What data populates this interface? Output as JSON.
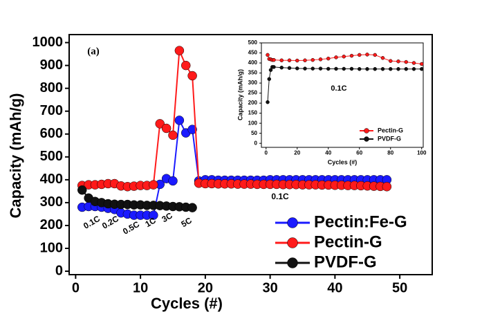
{
  "chart_data": [
    {
      "type": "line",
      "x_label": "Cycles (#)",
      "y_label": "Capacity (mAh/g)",
      "xlim": [
        -1,
        55
      ],
      "ylim": [
        -15,
        1035
      ],
      "xticks": [
        0,
        10,
        20,
        30,
        40,
        50
      ],
      "yticks": [
        0,
        100,
        200,
        300,
        400,
        500,
        600,
        700,
        800,
        900,
        1000
      ],
      "legend": "lower right",
      "annotations": [
        "(a)",
        "0.1C",
        "0.2C",
        "0.5C",
        "1C",
        "3C",
        "5C",
        "0.1C"
      ],
      "x": [
        1,
        2,
        3,
        4,
        5,
        6,
        7,
        8,
        9,
        10,
        11,
        12,
        13,
        14,
        15,
        16,
        17,
        18,
        19,
        20,
        21,
        22,
        23,
        24,
        25,
        26,
        27,
        28,
        29,
        30,
        31,
        32,
        33,
        34,
        35,
        36,
        37,
        38,
        39,
        40,
        41,
        42,
        43,
        44,
        45,
        46,
        47,
        48
      ],
      "series": [
        {
          "name": "Pectin:Fe-G",
          "color": "#1a1aff",
          "values": [
            280,
            283,
            283,
            280,
            275,
            270,
            255,
            250,
            245,
            245,
            245,
            245,
            380,
            405,
            395,
            660,
            605,
            620,
            395,
            400,
            400,
            398,
            398,
            398,
            398,
            398,
            398,
            398,
            398,
            400,
            400,
            400,
            400,
            400,
            400,
            400,
            400,
            400,
            400,
            400,
            400,
            400,
            400,
            400,
            400,
            400,
            400,
            400
          ]
        },
        {
          "name": "Pectin-G",
          "color": "#ff1a1a",
          "values": [
            375,
            378,
            378,
            380,
            383,
            383,
            373,
            370,
            372,
            375,
            375,
            378,
            645,
            625,
            595,
            965,
            900,
            855,
            385,
            383,
            383,
            382,
            382,
            382,
            381,
            381,
            381,
            380,
            380,
            380,
            380,
            379,
            379,
            379,
            378,
            378,
            378,
            377,
            377,
            376,
            376,
            375,
            375,
            374,
            373,
            372,
            371,
            370
          ]
        },
        {
          "name": "PVDF-G",
          "color": "#111111",
          "values": [
            355,
            320,
            305,
            300,
            295,
            293,
            292,
            292,
            290,
            290,
            288,
            288,
            287,
            285,
            283,
            282,
            280,
            278,
            null,
            null,
            null,
            null,
            null,
            null,
            null,
            null,
            null,
            null,
            null,
            null,
            null,
            null,
            null,
            null,
            null,
            null,
            null,
            null,
            null,
            null,
            null,
            null,
            null,
            null,
            null,
            null,
            null,
            null
          ]
        }
      ]
    },
    {
      "type": "line",
      "x_label": "Cycles (#)",
      "y_label": "Capacity (mAh/g)",
      "xlim": [
        -3,
        101
      ],
      "ylim": [
        -20,
        500
      ],
      "xticks": [
        0,
        20,
        40,
        60,
        80,
        100
      ],
      "yticks": [
        0,
        50,
        100,
        150,
        200,
        250,
        300,
        350,
        400,
        450,
        500
      ],
      "legend": "lower right",
      "annotations": [
        "0.1C"
      ],
      "x": [
        1,
        2,
        3,
        4,
        5,
        10,
        15,
        20,
        25,
        30,
        35,
        40,
        45,
        50,
        55,
        60,
        65,
        70,
        75,
        80,
        85,
        90,
        95,
        100
      ],
      "series": [
        {
          "name": "Pectin-G",
          "color": "#ff1a1a",
          "values": [
            440,
            420,
            418,
            415,
            415,
            413,
            413,
            412,
            413,
            415,
            418,
            422,
            428,
            432,
            436,
            440,
            442,
            440,
            425,
            410,
            408,
            405,
            400,
            395
          ]
        },
        {
          "name": "PVDF-G",
          "color": "#111111",
          "values": [
            205,
            320,
            365,
            380,
            380,
            377,
            375,
            373,
            372,
            372,
            372,
            371,
            371,
            371,
            371,
            370,
            370,
            370,
            370,
            370,
            370,
            370,
            370,
            370
          ]
        }
      ]
    }
  ]
}
